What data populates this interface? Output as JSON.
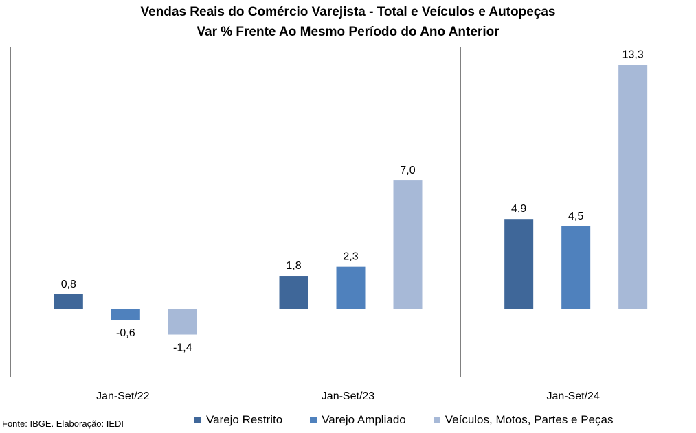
{
  "chart_data": {
    "type": "bar",
    "title": "Vendas Reais do Comércio Varejista - Total e Veículos e Autopeças",
    "subtitle": "Var % Frente Ao Mesmo Período do Ano Anterior",
    "categories": [
      "Jan-Set/22",
      "Jan-Set/23",
      "Jan-Set/24"
    ],
    "series": [
      {
        "name": "Varejo Restrito",
        "values": [
          0.8,
          1.8,
          4.9
        ],
        "labels": [
          "0,8",
          "1,8",
          "4,9"
        ],
        "color": "#3f6799"
      },
      {
        "name": "Varejo Ampliado",
        "values": [
          -0.6,
          2.3,
          4.5
        ],
        "labels": [
          "-0,6",
          "2,3",
          "4,5"
        ],
        "color": "#4f81bd"
      },
      {
        "name": "Veículos, Motos, Partes e Peças",
        "values": [
          -1.4,
          7.0,
          13.3
        ],
        "labels": [
          "-1,4",
          "7,0",
          "13,3"
        ],
        "color": "#a7b9d7"
      }
    ],
    "ylim": [
      -3.7,
      14.3
    ],
    "grid": false,
    "legend_position": "bottom"
  },
  "source": "Fonte: IBGE. Elaboração: IEDI"
}
